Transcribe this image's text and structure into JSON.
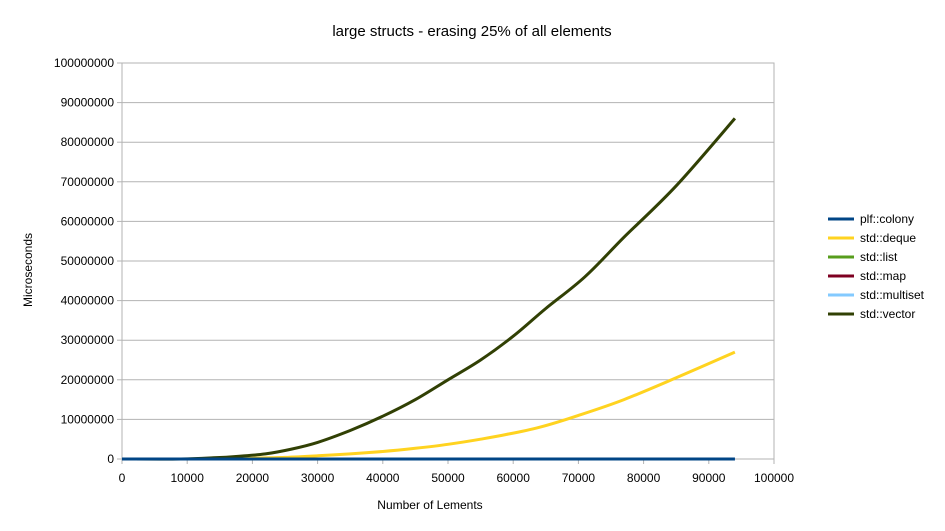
{
  "chart_data": {
    "type": "line",
    "title": "large structs - erasing 25% of all elements",
    "xlabel": "Number of Lements",
    "ylabel": "Microseconds",
    "xlim": [
      0,
      100000
    ],
    "ylim": [
      0,
      100000000
    ],
    "x_ticks": [
      0,
      10000,
      20000,
      30000,
      40000,
      50000,
      60000,
      70000,
      80000,
      90000,
      100000
    ],
    "y_ticks": [
      0,
      10000000,
      20000000,
      30000000,
      40000000,
      50000000,
      60000000,
      70000000,
      80000000,
      90000000,
      100000000
    ],
    "x_tick_labels": [
      "0",
      "10000",
      "20000",
      "30000",
      "40000",
      "50000",
      "60000",
      "70000",
      "80000",
      "90000",
      "100000"
    ],
    "y_tick_labels": [
      "0",
      "10000000",
      "20000000",
      "30000000",
      "40000000",
      "50000000",
      "60000000",
      "70000000",
      "80000000",
      "90000000",
      "100000000"
    ],
    "grid": "horizontal",
    "legend_position": "right",
    "series": [
      {
        "name": "plf::colony",
        "color": "#004586",
        "x": [
          0,
          10000,
          20000,
          30000,
          40000,
          50000,
          60000,
          70000,
          80000,
          94000
        ],
        "y": [
          0,
          0,
          0,
          0,
          0,
          0,
          0,
          0,
          0,
          0
        ]
      },
      {
        "name": "std::deque",
        "color": "#ffd320",
        "x": [
          0,
          10000,
          16000,
          20000,
          25000,
          30000,
          35000,
          40000,
          45000,
          50000,
          55000,
          59000,
          64000,
          70000,
          77000,
          85000,
          94000
        ],
        "y": [
          0,
          0,
          50000,
          200000,
          400000,
          800000,
          1300000,
          1900000,
          2700000,
          3700000,
          5000000,
          6200000,
          8000000,
          11000000,
          15000000,
          20500000,
          27000000
        ]
      },
      {
        "name": "std::list",
        "color": "#579d1c",
        "x": [
          0,
          10000,
          20000,
          30000,
          40000,
          50000,
          60000,
          70000,
          80000,
          94000
        ],
        "y": [
          0,
          0,
          0,
          0,
          0,
          0,
          0,
          0,
          0,
          0
        ]
      },
      {
        "name": "std::map",
        "color": "#7e0021",
        "x": [
          0,
          10000,
          20000,
          30000,
          40000,
          50000,
          60000,
          70000,
          80000,
          94000
        ],
        "y": [
          0,
          0,
          0,
          0,
          0,
          0,
          0,
          0,
          0,
          0
        ]
      },
      {
        "name": "std::multiset",
        "color": "#83caff",
        "x": [
          0,
          10000,
          20000,
          30000,
          40000,
          50000,
          60000,
          70000,
          80000,
          94000
        ],
        "y": [
          0,
          0,
          0,
          0,
          0,
          0,
          0,
          0,
          0,
          0
        ]
      },
      {
        "name": "std::vector",
        "color": "#314004",
        "x": [
          0,
          9000,
          14000,
          18000,
          22000,
          26000,
          30000,
          35000,
          40000,
          45000,
          50000,
          55000,
          60000,
          65000,
          71000,
          77000,
          85000,
          94000
        ],
        "y": [
          0,
          0,
          300000,
          700000,
          1300000,
          2500000,
          4200000,
          7200000,
          10800000,
          15000000,
          20000000,
          25000000,
          31000000,
          38000000,
          46000000,
          56000000,
          69000000,
          86000000
        ]
      }
    ]
  }
}
